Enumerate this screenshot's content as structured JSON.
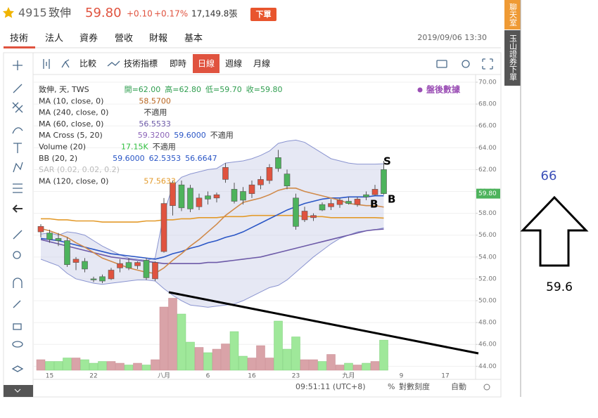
{
  "header": {
    "code": "4915",
    "name": "致伸",
    "price": "59.80",
    "change": "+0.10",
    "change_pct": "+0.17%",
    "volume": "17,149.8張",
    "order_button": "下單"
  },
  "tabs": [
    "技術",
    "法人",
    "資券",
    "營收",
    "財報",
    "基本"
  ],
  "datetime": "2019/09/06 13:30",
  "toolbar": [
    {
      "label": "比較",
      "active": false
    },
    {
      "label": "技術指標",
      "active": false
    },
    {
      "label": "即時",
      "active": false
    },
    {
      "label": "日線",
      "active": true
    },
    {
      "label": "週線",
      "active": false
    },
    {
      "label": "月線",
      "active": false
    }
  ],
  "side_buttons": [
    "聊天室",
    "玉山證券下單"
  ],
  "status_bar": {
    "time": "09:51:11 (UTC+8)",
    "percent": "%",
    "log": "對數刻度",
    "auto": "自動"
  },
  "overlay_note": {
    "target": "66",
    "price": "59.6"
  },
  "chart_data": {
    "type": "candlestick",
    "source_label": "盤後數據",
    "legend": [
      {
        "name": "致伸, 天, TWS",
        "values": [
          "開=62.00",
          "高=62.80",
          "低=59.70",
          "收=59.80"
        ],
        "colors": [
          "#2f9e4f",
          "#2f9e4f",
          "#2f9e4f",
          "#2f9e4f"
        ]
      },
      {
        "name": "MA (10, close, 0)",
        "values": [
          "58.5700"
        ],
        "colors": [
          "#b8651f"
        ]
      },
      {
        "name": "MA (240, close, 0)",
        "values": [
          "不適用"
        ],
        "colors": [
          "#333333"
        ]
      },
      {
        "name": "MA (60, close, 0)",
        "values": [
          "56.5533"
        ],
        "colors": [
          "#6d5aa8"
        ]
      },
      {
        "name": "MA Cross (5, 20)",
        "values": [
          "59.3200",
          "59.6000",
          "不適用"
        ],
        "colors": [
          "#8b63b8",
          "#2a56c6",
          "#333333"
        ]
      },
      {
        "name": "Volume (20)",
        "values": [
          "17.15K",
          "不適用"
        ],
        "colors": [
          "#2fbf3f",
          "#333333"
        ]
      },
      {
        "name": "BB (20, 2)",
        "values": [
          "59.6000",
          "62.5353",
          "56.6647"
        ],
        "colors": [
          "#2a56c6",
          "#2a56c6",
          "#2a56c6"
        ]
      },
      {
        "name": "SAR (0.02, 0.02, 0.2)",
        "values": [],
        "colors": []
      },
      {
        "name": "MA (120, close, 0)",
        "values": [
          "57.5633"
        ],
        "colors": [
          "#e39a2a"
        ]
      }
    ],
    "categories": [
      null,
      "15",
      null,
      null,
      null,
      null,
      "22",
      null,
      null,
      null,
      null,
      null,
      null,
      null,
      "八月",
      null,
      null,
      null,
      null,
      "6",
      null,
      null,
      null,
      null,
      "16",
      null,
      null,
      null,
      null,
      "23",
      null,
      null,
      null,
      null,
      null,
      "九月",
      null,
      null,
      null,
      null,
      null,
      "9",
      null,
      null,
      null,
      null,
      "17"
    ],
    "open": [
      56.3,
      56.2,
      55.7,
      55.5,
      53.5,
      53.6,
      52.0,
      52.2,
      52.0,
      53.0,
      53.5,
      53.2,
      53.7,
      52.0,
      54.5,
      58.7,
      60.6,
      60.3,
      58.6,
      59.6,
      59.4,
      61.1,
      60.2,
      60.0,
      59.8,
      60.6,
      61.0,
      63.1,
      61.6,
      59.4,
      57.4,
      57.6,
      58.8,
      58.6,
      58.8,
      59.1,
      58.8,
      59.7,
      59.7,
      62.0,
      null,
      null,
      null,
      null,
      null,
      null,
      null
    ],
    "high": [
      57.0,
      56.5,
      56.2,
      55.8,
      54.0,
      53.9,
      52.2,
      52.4,
      53.0,
      53.8,
      53.9,
      53.6,
      53.9,
      53.6,
      59.4,
      61.0,
      61.0,
      60.6,
      59.8,
      60.0,
      59.9,
      62.6,
      60.8,
      60.4,
      61.0,
      61.4,
      62.5,
      63.8,
      62.0,
      59.8,
      58.6,
      58.0,
      59.0,
      59.3,
      59.4,
      59.5,
      59.5,
      60.0,
      60.6,
      62.8,
      null,
      null,
      null,
      null,
      null,
      null,
      null
    ],
    "low": [
      55.8,
      55.3,
      55.0,
      53.1,
      52.8,
      52.6,
      51.7,
      51.6,
      51.9,
      52.6,
      52.8,
      52.9,
      51.9,
      51.8,
      54.4,
      57.8,
      58.2,
      58.1,
      58.3,
      58.8,
      59.0,
      60.8,
      58.9,
      58.8,
      59.4,
      60.2,
      60.7,
      61.8,
      60.2,
      56.5,
      57.2,
      57.3,
      58.2,
      58.3,
      58.5,
      58.8,
      58.6,
      59.2,
      59.6,
      59.7,
      null,
      null,
      null,
      null,
      null,
      null,
      null
    ],
    "close": [
      56.8,
      55.6,
      55.5,
      53.3,
      53.8,
      52.9,
      51.9,
      51.8,
      52.8,
      53.4,
      53.0,
      53.5,
      52.1,
      53.5,
      58.9,
      60.8,
      58.5,
      58.4,
      59.4,
      59.3,
      59.7,
      62.2,
      59.1,
      59.2,
      60.6,
      61.1,
      62.2,
      62.1,
      60.5,
      56.8,
      58.2,
      57.8,
      58.3,
      58.9,
      59.2,
      58.9,
      59.3,
      59.5,
      60.2,
      59.8,
      null,
      null,
      null,
      null,
      null,
      null,
      null
    ],
    "volume": [
      6,
      5,
      5,
      7,
      7,
      6,
      4,
      5,
      5,
      4,
      3,
      4,
      3,
      6,
      36,
      41,
      32,
      16,
      13,
      10,
      12,
      15,
      22,
      8,
      7,
      14,
      7,
      28,
      12,
      19,
      6,
      6,
      5,
      9,
      3,
      4,
      3,
      4,
      5,
      17.15,
      null,
      null,
      null,
      null,
      null,
      null,
      null
    ],
    "colors": {
      "up": "#e0533f",
      "down": "#4db35c",
      "volume_up": "#d9a3a8",
      "volume_down": "#9fe89a",
      "band": "#c7cbe6"
    },
    "band": {
      "upper": [
        56.1,
        56.2,
        56.0,
        56.3,
        56.2,
        56.0,
        55.5,
        55.0,
        54.6,
        54.2,
        53.9,
        53.8,
        53.7,
        53.9,
        58.0,
        60.5,
        61.3,
        61.6,
        61.8,
        62.0,
        62.1,
        62.6,
        62.7,
        62.8,
        63.0,
        63.3,
        63.7,
        64.4,
        64.6,
        64.7,
        64.5,
        64.0,
        63.5,
        63.0,
        62.8,
        62.6,
        62.5,
        62.5,
        62.5,
        62.5353,
        null,
        null,
        null,
        null,
        null,
        null,
        null
      ],
      "lower": [
        53.8,
        53.5,
        53.2,
        52.5,
        52.0,
        51.8,
        51.6,
        51.5,
        51.6,
        51.7,
        51.8,
        51.9,
        51.9,
        51.8,
        51.1,
        50.5,
        50.0,
        49.6,
        49.5,
        49.4,
        49.5,
        49.6,
        49.7,
        50.0,
        50.4,
        50.8,
        51.2,
        51.4,
        51.9,
        52.6,
        53.3,
        54.0,
        54.6,
        55.2,
        55.7,
        56.0,
        56.3,
        56.4,
        56.5,
        56.6647,
        null,
        null,
        null,
        null,
        null,
        null,
        null
      ]
    },
    "series": [
      {
        "name": "MA (120, close, 0)",
        "color": "#e39a2a",
        "values": [
          57.5,
          57.5,
          57.4,
          57.4,
          57.3,
          57.3,
          57.3,
          57.2,
          57.2,
          57.2,
          57.2,
          57.2,
          57.3,
          57.3,
          57.4,
          57.4,
          57.5,
          57.5,
          57.6,
          57.6,
          57.6,
          57.7,
          57.7,
          57.7,
          57.8,
          57.8,
          57.8,
          57.8,
          57.8,
          57.8,
          57.7,
          57.7,
          57.7,
          57.6,
          57.6,
          57.6,
          57.6,
          57.6,
          57.6,
          57.5633,
          null,
          null,
          null,
          null,
          null,
          null,
          null
        ]
      },
      {
        "name": "MA (60, close, 0)",
        "color": "#6d5aa8",
        "values": [
          55.6,
          55.4,
          55.2,
          55.0,
          54.8,
          54.6,
          54.4,
          54.2,
          54.0,
          53.9,
          53.8,
          53.7,
          53.6,
          53.5,
          53.4,
          53.4,
          53.4,
          53.4,
          53.4,
          53.5,
          53.5,
          53.6,
          53.7,
          53.8,
          53.9,
          54.0,
          54.2,
          54.4,
          54.6,
          54.8,
          55.0,
          55.2,
          55.4,
          55.6,
          55.8,
          56.0,
          56.2,
          56.4,
          56.5,
          56.5533,
          null,
          null,
          null,
          null,
          null,
          null,
          null
        ]
      },
      {
        "name": "BB (20, 2)",
        "color": "#2a56c6",
        "values": [
          55.7,
          55.6,
          55.5,
          55.3,
          55.1,
          54.9,
          54.7,
          54.5,
          54.3,
          54.2,
          54.1,
          54.0,
          53.9,
          53.8,
          54.0,
          54.3,
          54.5,
          54.8,
          55.0,
          55.3,
          55.5,
          55.8,
          56.0,
          56.3,
          56.7,
          57.1,
          57.5,
          57.9,
          58.3,
          58.6,
          58.9,
          59.1,
          59.3,
          59.4,
          59.4,
          59.5,
          59.5,
          59.5,
          59.6,
          59.6,
          null,
          null,
          null,
          null,
          null,
          null,
          null
        ]
      },
      {
        "name": "MA (10, close, 0)",
        "color": "#d08a4a",
        "values": [
          56.6,
          56.4,
          56.1,
          55.8,
          55.3,
          54.9,
          54.4,
          53.9,
          53.6,
          53.3,
          53.0,
          52.8,
          52.6,
          52.5,
          53.0,
          53.7,
          54.3,
          55.0,
          55.6,
          56.3,
          57.0,
          57.8,
          58.4,
          59.0,
          59.2,
          59.4,
          59.7,
          60.1,
          60.3,
          60.3,
          60.0,
          59.8,
          59.6,
          59.4,
          59.2,
          58.9,
          58.8,
          58.7,
          58.7,
          58.57,
          null,
          null,
          null,
          null,
          null,
          null,
          null
        ]
      }
    ],
    "ylim": [
      42.8,
      70.45
    ],
    "yticks": [
      {
        "value": 44,
        "label": "44.00"
      },
      {
        "value": 46,
        "label": "46.00"
      },
      {
        "value": 48,
        "label": "48.00"
      },
      {
        "value": 50,
        "label": "50.00"
      },
      {
        "value": 52,
        "label": "52.00"
      },
      {
        "value": 54,
        "label": "54.00"
      },
      {
        "value": 56,
        "label": "56.00"
      },
      {
        "value": 58,
        "label": "58.00"
      },
      {
        "value": 60,
        "label": "60.00"
      },
      {
        "value": 62,
        "label": "62.00"
      },
      {
        "value": 64,
        "label": "64.00"
      },
      {
        "value": 66,
        "label": "66.00"
      },
      {
        "value": 68,
        "label": "68.00"
      },
      {
        "value": 70,
        "label": "70.00"
      }
    ],
    "last_price": {
      "value": 59.8,
      "label": "59.80"
    },
    "annotations": [
      "S",
      "B",
      "B"
    ],
    "grid": true
  }
}
